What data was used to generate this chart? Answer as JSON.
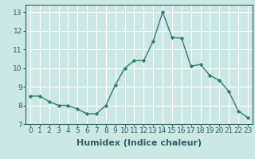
{
  "x": [
    0,
    1,
    2,
    3,
    4,
    5,
    6,
    7,
    8,
    9,
    10,
    11,
    12,
    13,
    14,
    15,
    16,
    17,
    18,
    19,
    20,
    21,
    22,
    23
  ],
  "y": [
    8.5,
    8.5,
    8.2,
    8.0,
    8.0,
    7.8,
    7.55,
    7.55,
    8.0,
    9.1,
    10.0,
    10.4,
    10.4,
    11.45,
    13.0,
    11.65,
    11.6,
    10.1,
    10.2,
    9.6,
    9.35,
    8.75,
    7.7,
    7.35
  ],
  "line_color": "#2d7d6e",
  "marker": "D",
  "marker_size": 2.2,
  "line_width": 1.0,
  "bg_color": "#cce8e4",
  "grid_color": "#ffffff",
  "xlabel": "Humidex (Indice chaleur)",
  "xlabel_fontsize": 8,
  "tick_fontsize": 6.5,
  "xlim": [
    -0.5,
    23.5
  ],
  "ylim": [
    7.0,
    13.4
  ],
  "yticks": [
    7,
    8,
    9,
    10,
    11,
    12,
    13
  ],
  "xticks": [
    0,
    1,
    2,
    3,
    4,
    5,
    6,
    7,
    8,
    9,
    10,
    11,
    12,
    13,
    14,
    15,
    16,
    17,
    18,
    19,
    20,
    21,
    22,
    23
  ]
}
